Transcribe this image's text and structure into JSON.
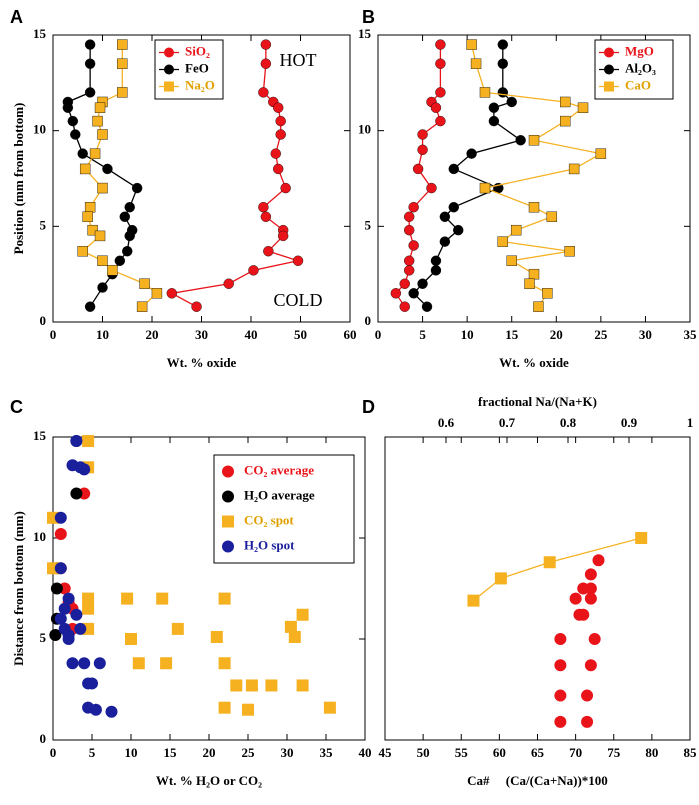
{
  "chart_data": [
    {
      "type": "line",
      "label": "A",
      "xlabel": "Wt. % oxide",
      "ylabel": "Position (mm from bottom)",
      "xlim": [
        0,
        60
      ],
      "xticks": [
        0,
        10,
        20,
        30,
        40,
        50,
        60
      ],
      "ylim": [
        0,
        15
      ],
      "yticks": [
        0,
        5,
        10,
        15
      ],
      "legend": "top center",
      "annotations": [
        "HOT",
        "COLD"
      ],
      "series": [
        {
          "name": "SiO₂",
          "color": "#e8141a",
          "marker": "circle",
          "x": [
            43,
            43,
            42.5,
            44.5,
            45.5,
            46,
            46,
            45,
            45.5,
            47,
            42.5,
            43,
            46.5,
            46.5,
            43.5,
            49.5,
            40.5,
            35.5,
            24,
            29
          ],
          "values": [
            14.5,
            13.5,
            12,
            11.5,
            11.2,
            10.5,
            9.8,
            8.8,
            8,
            7,
            6,
            5.5,
            4.8,
            4.5,
            3.7,
            3.2,
            2.7,
            2,
            1.5,
            0.8
          ]
        },
        {
          "name": "FeO",
          "color": "#000000",
          "marker": "circle",
          "x": [
            7.5,
            7.5,
            7.5,
            3,
            3,
            4,
            4.5,
            6,
            11,
            17,
            15.5,
            14.5,
            16,
            15.5,
            15,
            13.5,
            12,
            10,
            7.5
          ],
          "values": [
            14.5,
            13.5,
            12,
            11.5,
            11.2,
            10.5,
            9.8,
            8.8,
            8,
            7,
            6,
            5.5,
            4.8,
            4.5,
            3.7,
            3.2,
            2.5,
            1.8,
            0.8
          ]
        },
        {
          "name": "Na₂O",
          "color": "#f5b120",
          "marker": "square",
          "x": [
            14,
            14,
            14,
            10,
            9.5,
            9,
            10,
            8.5,
            6.5,
            10,
            7.5,
            7,
            8,
            9.5,
            6,
            10,
            12,
            18.5,
            21,
            18
          ],
          "values": [
            14.5,
            13.5,
            12,
            11.5,
            11.2,
            10.5,
            9.8,
            8.8,
            8,
            7,
            6,
            5.5,
            4.8,
            4.5,
            3.7,
            3.2,
            2.7,
            2,
            1.5,
            0.8
          ]
        }
      ]
    },
    {
      "type": "line",
      "label": "B",
      "xlabel": "Wt. % oxide",
      "xlim": [
        0,
        35
      ],
      "xticks": [
        0,
        5,
        10,
        15,
        20,
        25,
        30,
        35
      ],
      "ylim": [
        0,
        15
      ],
      "yticks": [
        0,
        5,
        10,
        15
      ],
      "legend": "top right",
      "series": [
        {
          "name": "MgO",
          "color": "#e8141a",
          "marker": "circle",
          "x": [
            7,
            7,
            7,
            6,
            6.5,
            7,
            5,
            5,
            4.5,
            6,
            4,
            3.5,
            3.5,
            4,
            3.5,
            3.5,
            3,
            2,
            3
          ],
          "values": [
            14.5,
            13.5,
            12,
            11.5,
            11.2,
            10.5,
            9.8,
            9,
            8,
            7,
            6,
            5.5,
            4.8,
            4,
            3.2,
            2.7,
            2,
            1.5,
            0.8
          ]
        },
        {
          "name": "Al₂O₃",
          "color": "#000000",
          "marker": "circle",
          "x": [
            14,
            14,
            14,
            15,
            13,
            13,
            16,
            10.5,
            8.5,
            13.5,
            8.5,
            7.5,
            9,
            7.5,
            6.5,
            6.5,
            5,
            4,
            5.5
          ],
          "values": [
            14.5,
            13.5,
            12,
            11.5,
            11.2,
            10.5,
            9.5,
            8.8,
            8,
            7,
            6,
            5.5,
            4.8,
            4.2,
            3.2,
            2.7,
            2,
            1.5,
            0.8
          ]
        },
        {
          "name": "CaO",
          "color": "#f5b120",
          "marker": "square",
          "x": [
            10.5,
            11,
            12,
            21,
            23,
            21,
            17.5,
            25,
            22,
            12,
            17.5,
            19.5,
            15.5,
            14,
            21.5,
            15,
            17.5,
            17,
            19,
            18
          ],
          "values": [
            14.5,
            13.5,
            12,
            11.5,
            11.2,
            10.5,
            9.5,
            8.8,
            8,
            7,
            6,
            5.5,
            4.8,
            4.2,
            3.7,
            3.2,
            2.5,
            2,
            1.5,
            0.8
          ]
        }
      ]
    },
    {
      "type": "scatter",
      "label": "C",
      "xlabel": "Wt. % H₂O or CO₂",
      "ylabel": "Distance from bottom (mm)",
      "xlim": [
        0,
        40
      ],
      "xticks": [
        0,
        5,
        10,
        15,
        20,
        25,
        30,
        35,
        40
      ],
      "ylim": [
        0,
        15
      ],
      "yticks": [
        0,
        5,
        10,
        15
      ],
      "legend": "top right",
      "series": [
        {
          "name": "CO₂ average",
          "color": "#e8141a",
          "marker": "circle",
          "x": [
            4,
            1,
            1,
            1.5,
            2,
            2.5,
            2.5
          ],
          "values": [
            12.2,
            10.2,
            8.5,
            7.5,
            6.8,
            6.5,
            5.5
          ]
        },
        {
          "name": "H₂O average",
          "color": "#000000",
          "marker": "circle",
          "x": [
            3,
            3,
            0.5,
            0.5,
            0.5,
            0.3
          ],
          "values": [
            14.8,
            12.2,
            8.5,
            7.5,
            6,
            5.2
          ]
        },
        {
          "name": "CO₂ spot",
          "color": "#f5b120",
          "marker": "square",
          "x": [
            4.5,
            4.5,
            0,
            0,
            4.5,
            4.5,
            4.5,
            9.5,
            14,
            22,
            32,
            30.5,
            31,
            16,
            21,
            10,
            11,
            14.5,
            22,
            23.5,
            25.5,
            28,
            32,
            22,
            25,
            35.5
          ],
          "values": [
            14.8,
            13.5,
            11,
            8.5,
            7,
            6.5,
            5.5,
            7,
            7,
            7,
            6.2,
            5.6,
            5.1,
            5.5,
            5.1,
            5,
            3.8,
            3.8,
            3.8,
            2.7,
            2.7,
            2.7,
            2.7,
            1.6,
            1.5,
            1.6
          ]
        },
        {
          "name": "H₂O spot",
          "color": "#1a1f9c",
          "marker": "circle",
          "x": [
            3,
            2.5,
            3.5,
            4,
            1,
            1,
            2,
            1.5,
            3,
            1,
            1.5,
            2,
            3.5,
            2,
            2.5,
            4,
            6,
            4.5,
            5,
            4.5,
            5.5,
            7.5
          ],
          "values": [
            14.8,
            13.6,
            13.5,
            13.4,
            11,
            8.5,
            7,
            6.5,
            6.2,
            6,
            5.5,
            5.2,
            5.5,
            5,
            3.8,
            3.8,
            3.8,
            2.8,
            2.8,
            1.6,
            1.5,
            1.4
          ]
        }
      ]
    },
    {
      "type": "scatter",
      "label": "D",
      "xlabel": "Ca#     (Ca/(Ca+Na))*100",
      "x2label": "fractional Na/(Na+K)",
      "xlim": [
        45,
        85
      ],
      "xticks": [
        45,
        50,
        55,
        60,
        65,
        70,
        75,
        80,
        85
      ],
      "x2lim": [
        0.5,
        1
      ],
      "x2ticks": [
        0.6,
        0.7,
        0.8,
        0.9,
        1
      ],
      "ylim": [
        0,
        15
      ],
      "series": [
        {
          "color": "#e8141a",
          "marker": "circle",
          "x": [
            68,
            71.5,
            68,
            71.5,
            68,
            72,
            68,
            72.5,
            70.5,
            71,
            70,
            72,
            71,
            72,
            72,
            73
          ],
          "values": [
            0.9,
            0.9,
            2.2,
            2.2,
            3.7,
            3.7,
            5,
            5,
            6.2,
            6.2,
            7,
            7,
            7.5,
            7.5,
            8.2,
            8.9
          ]
        },
        {
          "color": "#f5b120",
          "marker": "square",
          "axis": "x2",
          "line": true,
          "x": [
            0.645,
            0.69,
            0.77,
            0.92
          ],
          "values": [
            6.9,
            8,
            8.8,
            10
          ]
        }
      ]
    }
  ]
}
